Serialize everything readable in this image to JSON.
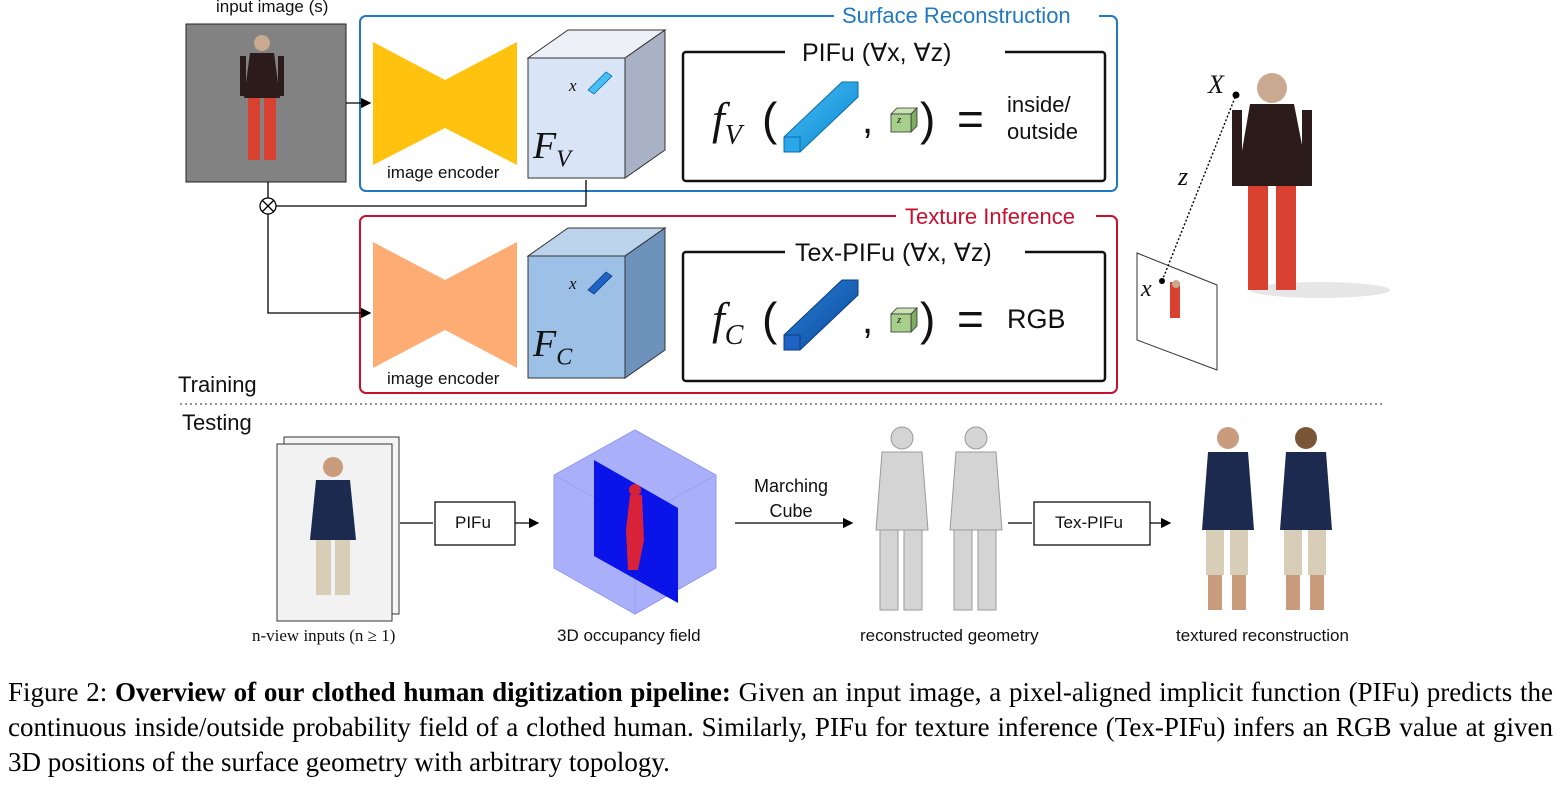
{
  "top": {
    "input_label": "input image (s)",
    "training_label": "Training",
    "testing_label": "Testing"
  },
  "surface": {
    "title": "Surface Reconstruction",
    "pifu_title": "PIFu (∀x, ∀z)",
    "feature_label": "F",
    "feature_sub": "V",
    "point_label": "x",
    "func_name": "f",
    "func_sub": "V",
    "z_label": "z",
    "result": "inside/\noutside",
    "encoder_label": "image encoder",
    "color": "#1f78c1"
  },
  "texture": {
    "title": "Texture Inference",
    "pifu_title": "Tex-PIFu (∀x, ∀z)",
    "feature_label": "F",
    "feature_sub": "C",
    "point_label": "x",
    "func_name": "f",
    "func_sub": "C",
    "z_label": "z",
    "result": "RGB",
    "encoder_label": "image encoder",
    "color": "#c8102e"
  },
  "projection": {
    "big_x": "X",
    "z": "z",
    "small_x": "x"
  },
  "testing": {
    "inputs_label": "n-view inputs (n ≥ 1)",
    "pifu_box": "PIFu",
    "occupancy_label": "3D occupancy field",
    "marching_label": "Marching\nCube",
    "geometry_label": "reconstructed geometry",
    "texpifu_box": "Tex-PIFu",
    "textured_label": "textured reconstruction"
  },
  "caption": {
    "prefix": "Figure 2: ",
    "bold": "Overview of our clothed human digitization pipeline:",
    "text": " Given an input image, a pixel-aligned implicit function (PIFu) predicts the continuous inside/outside probability field of a clothed human. Similarly, PIFu for texture inference (Tex-PIFu) infers an RGB value at given 3D positions of the surface geometry with arbitrary topology."
  }
}
